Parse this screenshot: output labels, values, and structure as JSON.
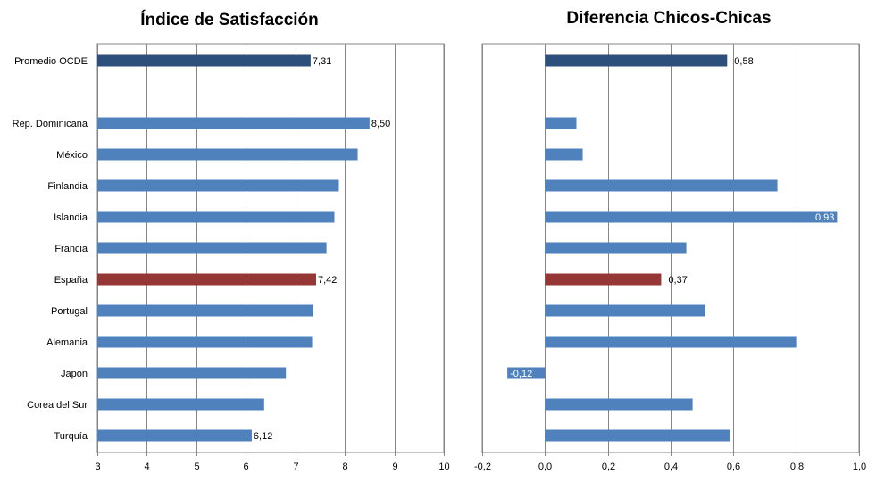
{
  "chart_data": [
    {
      "type": "bar",
      "orientation": "horizontal",
      "title": "Índice de Satisfacción",
      "categories": [
        "Promedio OCDE",
        "",
        "Rep. Dominicana",
        "México",
        "Finlandia",
        "Islandia",
        "Francia",
        "España",
        "Portugal",
        "Alemania",
        "Japón",
        "Corea del Sur",
        "Turquía"
      ],
      "values": [
        7.31,
        null,
        8.5,
        8.26,
        7.88,
        7.79,
        7.63,
        7.42,
        7.36,
        7.34,
        6.81,
        6.37,
        6.12
      ],
      "data_labels": {
        "0": "7,31",
        "2": "8,50",
        "7": "7,42",
        "12": "6,12"
      },
      "bar_colors": {
        "default": "#4f81bd",
        "0": "#2c4f7c",
        "7": "#953735"
      },
      "xlim": [
        3,
        10
      ],
      "ticks": [
        3,
        4,
        5,
        6,
        7,
        8,
        9,
        10
      ],
      "tick_labels": [
        "3",
        "4",
        "5",
        "6",
        "7",
        "8",
        "9",
        "10"
      ],
      "grid": true,
      "xlabel": "",
      "ylabel": ""
    },
    {
      "type": "bar",
      "orientation": "horizontal",
      "title": "Diferencia Chicos-Chicas",
      "categories": [
        "Promedio OCDE",
        "",
        "Rep. Dominicana",
        "México",
        "Finlandia",
        "Islandia",
        "Francia",
        "España",
        "Portugal",
        "Alemania",
        "Japón",
        "Corea del Sur",
        "Turquía"
      ],
      "values": [
        0.58,
        null,
        0.1,
        0.12,
        0.74,
        0.93,
        0.45,
        0.37,
        0.51,
        0.8,
        -0.12,
        0.47,
        0.59
      ],
      "data_labels": {
        "0": "0,58",
        "5": "0,93",
        "7": "0,37",
        "10": "-0,12"
      },
      "bar_colors": {
        "default": "#4f81bd",
        "0": "#2c4f7c",
        "7": "#953735"
      },
      "xlim": [
        -0.2,
        1.0
      ],
      "ticks": [
        -0.2,
        0.0,
        0.2,
        0.4,
        0.6,
        0.8,
        1.0
      ],
      "tick_labels": [
        "-0,2",
        "0,0",
        "0,2",
        "0,4",
        "0,6",
        "0,8",
        "1,0"
      ],
      "grid": true,
      "xlabel": "",
      "ylabel": ""
    }
  ]
}
